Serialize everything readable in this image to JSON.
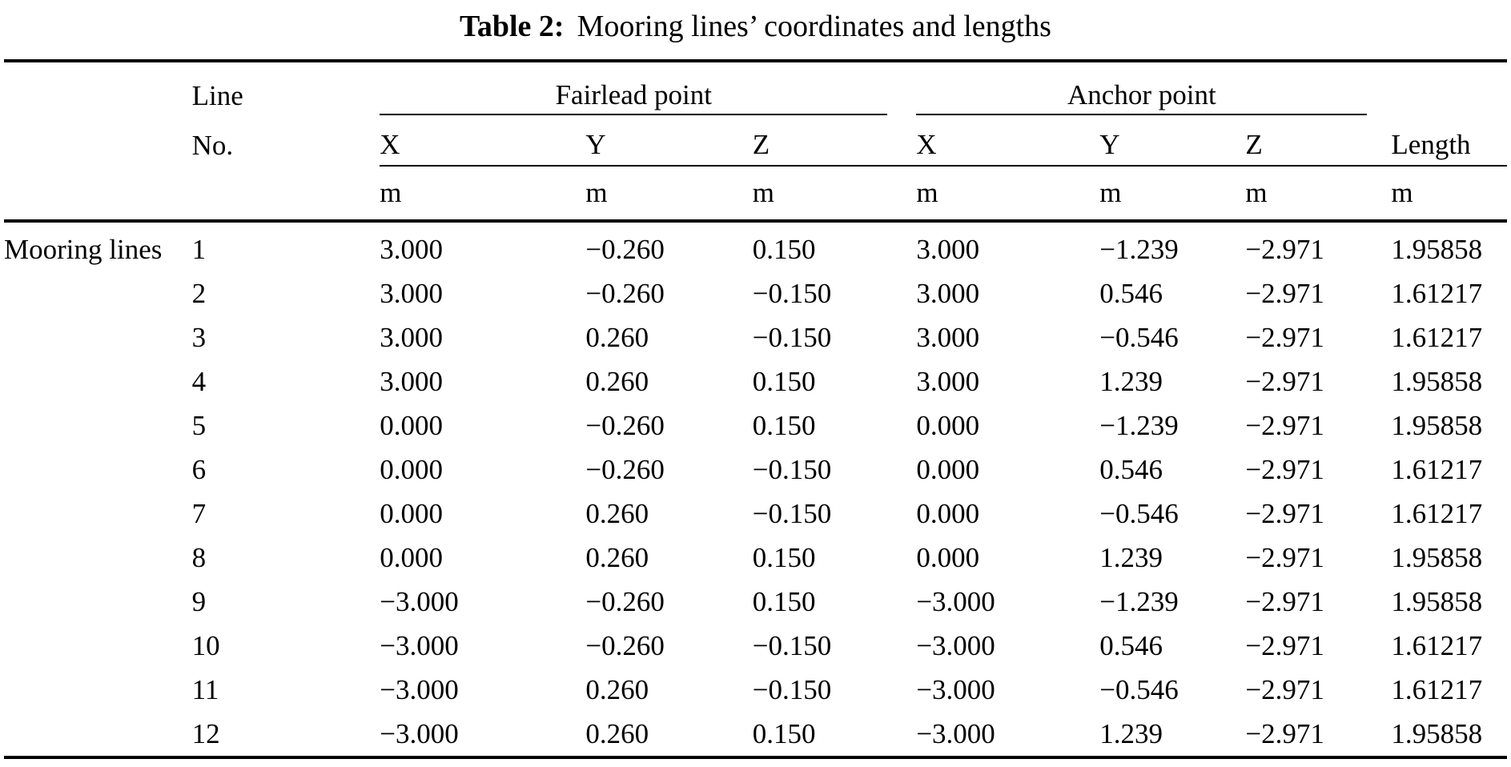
{
  "caption": {
    "label": "Table 2:",
    "text": "Mooring lines’ coordinates and lengths"
  },
  "table": {
    "line_header": {
      "line1": "Line",
      "line2": "No."
    },
    "groups": [
      {
        "label": "Fairlead point"
      },
      {
        "label": "Anchor point"
      }
    ],
    "sub_headers": [
      "X",
      "Y",
      "Z",
      "X",
      "Y",
      "Z"
    ],
    "length_header": "Length",
    "units": [
      "m",
      "m",
      "m",
      "m",
      "m",
      "m",
      "m"
    ],
    "row_group_label": "Mooring\nlines",
    "rows": [
      {
        "no": "1",
        "fx": "3.000",
        "fy": "−0.260",
        "fz": "0.150",
        "ax": "3.000",
        "ay": "−1.239",
        "az": "−2.971",
        "len": "1.95858"
      },
      {
        "no": "2",
        "fx": "3.000",
        "fy": "−0.260",
        "fz": "−0.150",
        "ax": "3.000",
        "ay": "0.546",
        "az": "−2.971",
        "len": "1.61217"
      },
      {
        "no": "3",
        "fx": "3.000",
        "fy": "0.260",
        "fz": "−0.150",
        "ax": "3.000",
        "ay": "−0.546",
        "az": "−2.971",
        "len": "1.61217"
      },
      {
        "no": "4",
        "fx": "3.000",
        "fy": "0.260",
        "fz": "0.150",
        "ax": "3.000",
        "ay": "1.239",
        "az": "−2.971",
        "len": "1.95858"
      },
      {
        "no": "5",
        "fx": "0.000",
        "fy": "−0.260",
        "fz": "0.150",
        "ax": "0.000",
        "ay": "−1.239",
        "az": "−2.971",
        "len": "1.95858"
      },
      {
        "no": "6",
        "fx": "0.000",
        "fy": "−0.260",
        "fz": "−0.150",
        "ax": "0.000",
        "ay": "0.546",
        "az": "−2.971",
        "len": "1.61217"
      },
      {
        "no": "7",
        "fx": "0.000",
        "fy": "0.260",
        "fz": "−0.150",
        "ax": "0.000",
        "ay": "−0.546",
        "az": "−2.971",
        "len": "1.61217"
      },
      {
        "no": "8",
        "fx": "0.000",
        "fy": "0.260",
        "fz": "0.150",
        "ax": "0.000",
        "ay": "1.239",
        "az": "−2.971",
        "len": "1.95858"
      },
      {
        "no": "9",
        "fx": "−3.000",
        "fy": "−0.260",
        "fz": "0.150",
        "ax": "−3.000",
        "ay": "−1.239",
        "az": "−2.971",
        "len": "1.95858"
      },
      {
        "no": "10",
        "fx": "−3.000",
        "fy": "−0.260",
        "fz": "−0.150",
        "ax": "−3.000",
        "ay": "0.546",
        "az": "−2.971",
        "len": "1.61217"
      },
      {
        "no": "11",
        "fx": "−3.000",
        "fy": "0.260",
        "fz": "−0.150",
        "ax": "−3.000",
        "ay": "−0.546",
        "az": "−2.971",
        "len": "1.61217"
      },
      {
        "no": "12",
        "fx": "−3.000",
        "fy": "0.260",
        "fz": "0.150",
        "ax": "−3.000",
        "ay": "1.239",
        "az": "−2.971",
        "len": "1.95858"
      }
    ]
  }
}
